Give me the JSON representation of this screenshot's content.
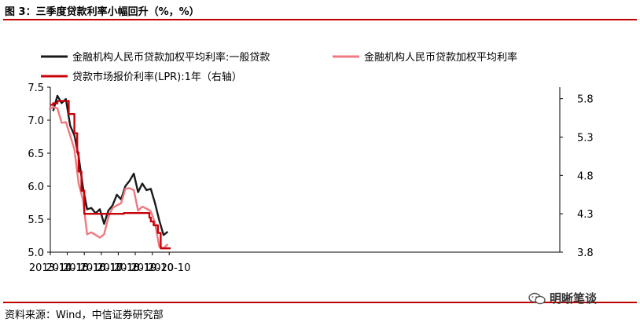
{
  "figure": {
    "title": "图 3：三季度贷款利率小幅回升（%，%）",
    "source": "资料来源：Wind，中信证券研究部",
    "watermark": "明晰笔谈"
  },
  "colors": {
    "general_loan": "#1a1a1a",
    "all_loan": "#f07880",
    "lpr": "#c8000a",
    "rule": "#c00000"
  },
  "chart_data": {
    "type": "line",
    "legend": [
      "金融机构人民币贷款加权平均利率:一般贷款",
      "金融机构人民币贷款加权平均利率",
      "贷款市场报价利率(LPR):1年（右轴）"
    ],
    "x_ticks": [
      "2013-10",
      "2014-10",
      "2015-10",
      "2016-10",
      "2017-10",
      "2018-10",
      "2019-10",
      "2020-10"
    ],
    "left_axis": {
      "ylim": [
        5.0,
        7.5
      ],
      "ticks": [
        "5.0",
        "5.5",
        "6.0",
        "6.5",
        "7.0",
        "7.5"
      ]
    },
    "right_axis": {
      "ylim": [
        3.8,
        5.95
      ],
      "ticks": [
        "3.8",
        "4.3",
        "4.8",
        "5.3",
        "5.8"
      ]
    },
    "series": [
      {
        "name": "金融机构人民币贷款加权平均利率:一般贷款",
        "axis": "left",
        "points": [
          [
            "2013-12",
            7.14
          ],
          [
            "2014-03",
            7.37
          ],
          [
            "2014-06",
            7.26
          ],
          [
            "2014-09",
            7.32
          ],
          [
            "2014-12",
            6.92
          ],
          [
            "2015-03",
            6.77
          ],
          [
            "2015-06",
            6.45
          ],
          [
            "2015-09",
            5.99
          ],
          [
            "2015-12",
            5.65
          ],
          [
            "2016-03",
            5.67
          ],
          [
            "2016-06",
            5.59
          ],
          [
            "2016-09",
            5.65
          ],
          [
            "2016-12",
            5.43
          ],
          [
            "2017-03",
            5.63
          ],
          [
            "2017-06",
            5.71
          ],
          [
            "2017-09",
            5.87
          ],
          [
            "2017-12",
            5.8
          ],
          [
            "2018-03",
            6.0
          ],
          [
            "2018-06",
            6.08
          ],
          [
            "2018-09",
            6.19
          ],
          [
            "2018-12",
            5.91
          ],
          [
            "2019-03",
            6.04
          ],
          [
            "2019-06",
            5.94
          ],
          [
            "2019-09",
            5.96
          ],
          [
            "2019-12",
            5.74
          ],
          [
            "2020-03",
            5.48
          ],
          [
            "2020-06",
            5.26
          ],
          [
            "2020-09",
            5.31
          ]
        ]
      },
      {
        "name": "金融机构人民币贷款加权平均利率",
        "axis": "left",
        "points": [
          [
            "2013-09",
            7.17
          ],
          [
            "2013-12",
            7.2
          ],
          [
            "2014-03",
            7.18
          ],
          [
            "2014-06",
            6.96
          ],
          [
            "2014-09",
            6.97
          ],
          [
            "2014-12",
            6.77
          ],
          [
            "2015-03",
            6.56
          ],
          [
            "2015-06",
            6.04
          ],
          [
            "2015-09",
            5.8
          ],
          [
            "2015-12",
            5.27
          ],
          [
            "2016-03",
            5.3
          ],
          [
            "2016-06",
            5.26
          ],
          [
            "2016-09",
            5.22
          ],
          [
            "2016-12",
            5.27
          ],
          [
            "2017-03",
            5.53
          ],
          [
            "2017-06",
            5.67
          ],
          [
            "2017-09",
            5.71
          ],
          [
            "2017-12",
            5.74
          ],
          [
            "2018-03",
            5.96
          ],
          [
            "2018-06",
            5.97
          ],
          [
            "2018-09",
            5.94
          ],
          [
            "2018-12",
            5.63
          ],
          [
            "2019-03",
            5.69
          ],
          [
            "2019-06",
            5.66
          ],
          [
            "2019-09",
            5.62
          ],
          [
            "2019-12",
            5.44
          ],
          [
            "2020-03",
            5.08
          ],
          [
            "2020-06",
            5.06
          ],
          [
            "2020-09",
            5.12
          ]
        ]
      },
      {
        "name": "贷款市场报价利率(LPR):1年（右轴）",
        "axis": "right",
        "step": true,
        "points": [
          [
            "2013-10",
            5.72
          ],
          [
            "2013-12",
            5.74
          ],
          [
            "2014-03",
            5.77
          ],
          [
            "2014-11",
            5.6
          ],
          [
            "2015-03",
            5.35
          ],
          [
            "2015-05",
            5.1
          ],
          [
            "2015-06",
            4.85
          ],
          [
            "2015-08",
            4.6
          ],
          [
            "2015-10",
            4.3
          ],
          [
            "2018-02",
            4.31
          ],
          [
            "2019-07",
            4.31
          ],
          [
            "2019-08",
            4.25
          ],
          [
            "2019-09",
            4.2
          ],
          [
            "2019-11",
            4.15
          ],
          [
            "2020-02",
            4.05
          ],
          [
            "2020-04",
            3.85
          ],
          [
            "2020-11",
            3.85
          ]
        ]
      }
    ]
  }
}
